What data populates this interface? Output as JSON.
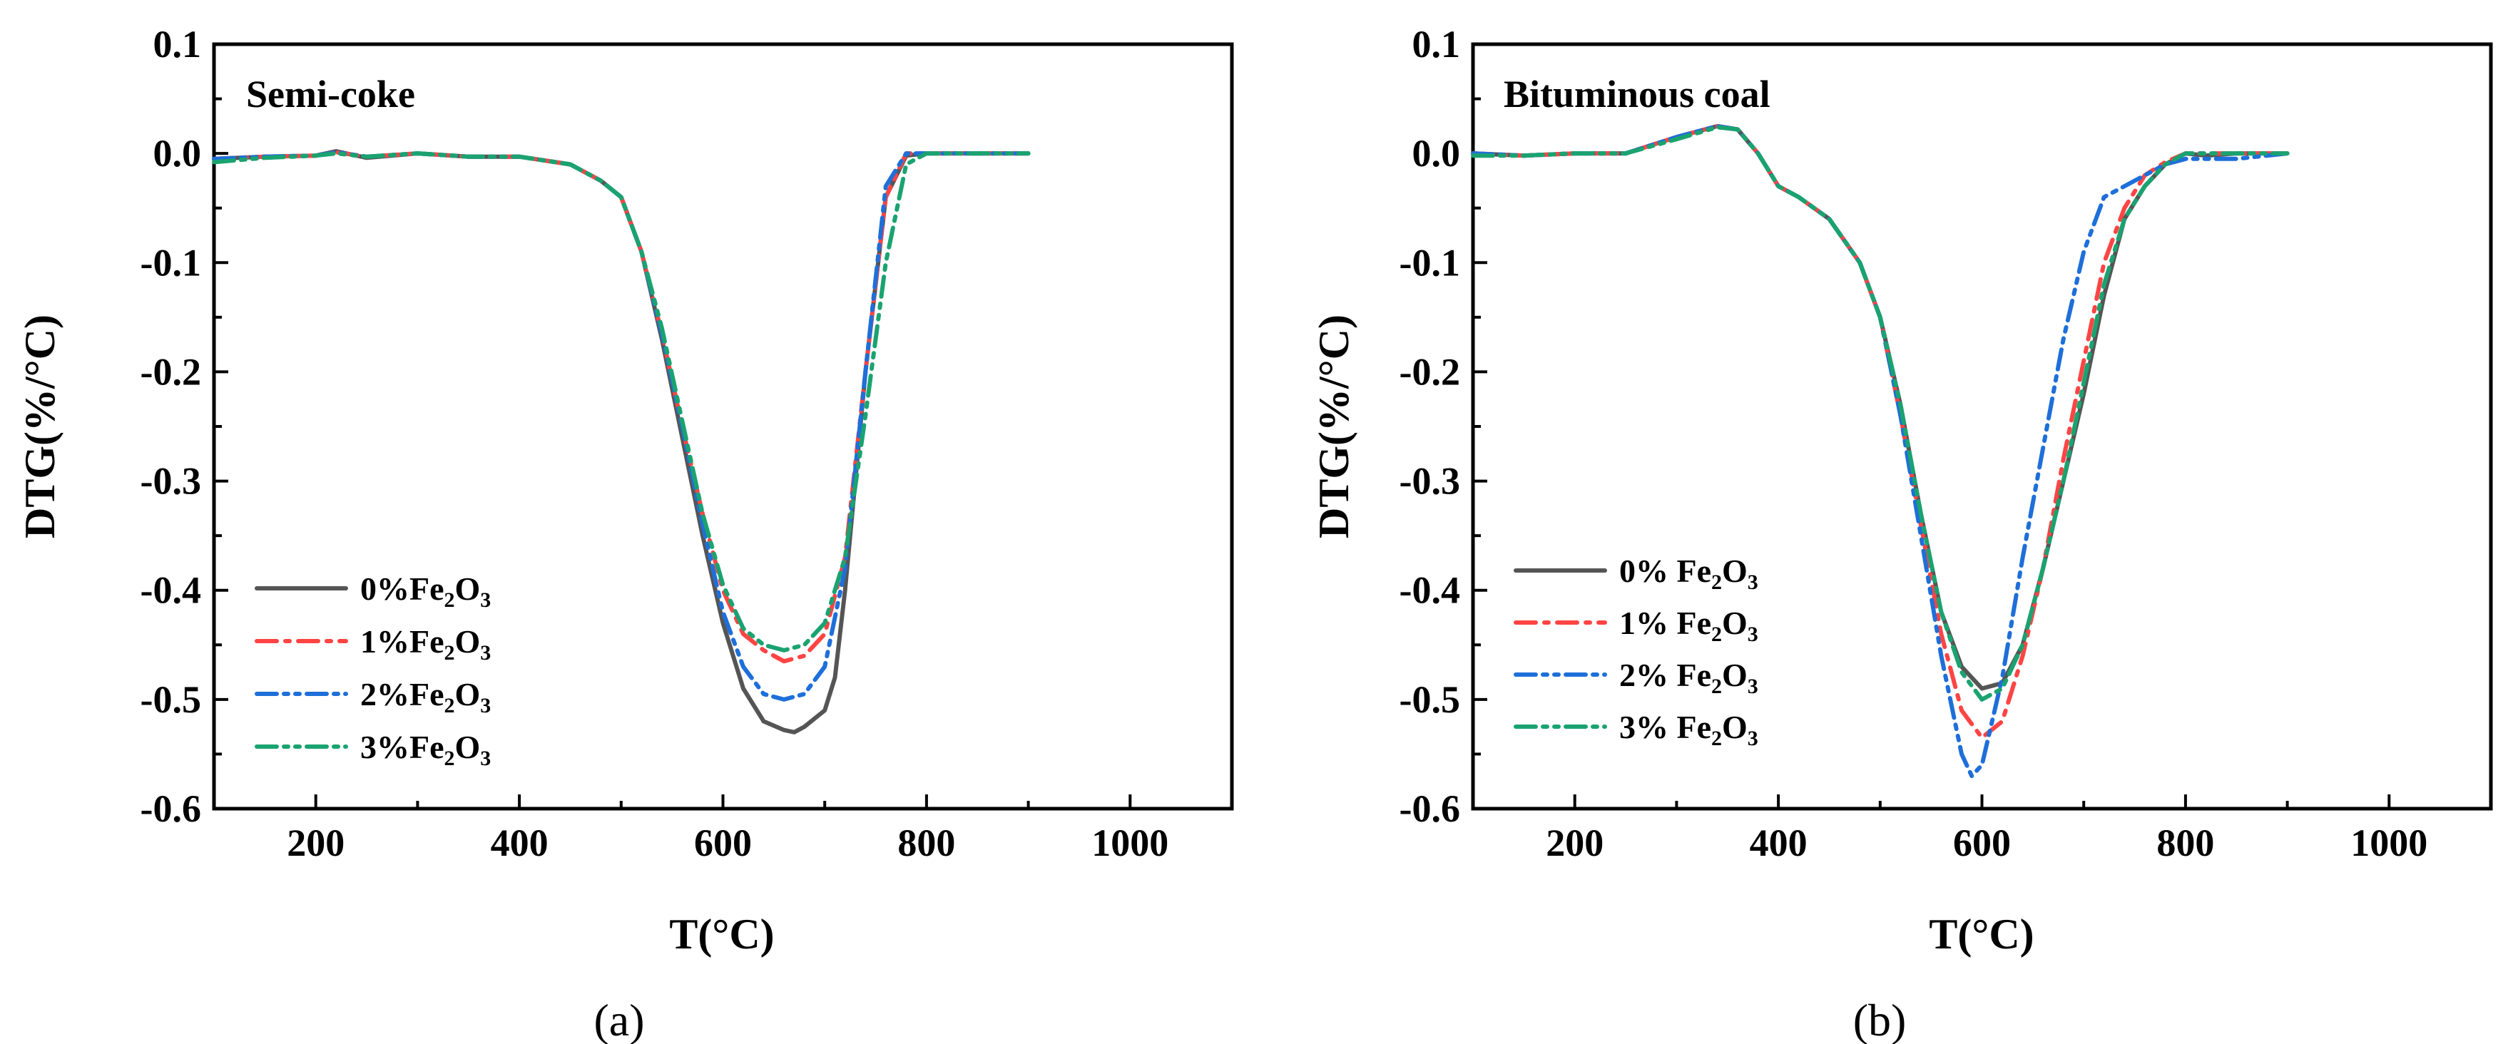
{
  "chart_data": [
    {
      "type": "line",
      "panel_label": "(a)",
      "title": "Semi-coke",
      "xlabel": "T(°C)",
      "ylabel": "DTG(%/°C)",
      "xlim": [
        100,
        1100
      ],
      "ylim": [
        -0.6,
        0.1
      ],
      "xticks": [
        200,
        400,
        600,
        800,
        1000
      ],
      "yticks": [
        0.1,
        0.0,
        -0.1,
        -0.2,
        -0.3,
        -0.4,
        -0.5,
        -0.6
      ],
      "ytick_labels": [
        "0.1",
        "0.0",
        "-0.1",
        "-0.2",
        "-0.3",
        "-0.4",
        "-0.5",
        "-0.6"
      ],
      "legend_position": "bottom-left",
      "series": [
        {
          "name": "0%Fe2O3",
          "label_main": "0%Fe",
          "label_sub1": "2",
          "label_mid": "O",
          "label_sub2": "3",
          "color": "#555555",
          "dash": "solid",
          "x": [
            100,
            150,
            200,
            220,
            250,
            300,
            350,
            400,
            450,
            480,
            500,
            520,
            540,
            560,
            580,
            600,
            620,
            640,
            660,
            670,
            680,
            700,
            710,
            720,
            740,
            760,
            780,
            800,
            850,
            900
          ],
          "y": [
            -0.005,
            -0.003,
            -0.002,
            0.002,
            -0.004,
            0.0,
            -0.003,
            -0.003,
            -0.01,
            -0.025,
            -0.04,
            -0.09,
            -0.17,
            -0.26,
            -0.35,
            -0.43,
            -0.49,
            -0.52,
            -0.528,
            -0.53,
            -0.525,
            -0.51,
            -0.48,
            -0.4,
            -0.2,
            -0.04,
            -0.002,
            0.0,
            0.0,
            0.0
          ]
        },
        {
          "name": "1%Fe2O3",
          "label_main": "1%Fe",
          "label_sub1": "2",
          "label_mid": "O",
          "label_sub2": "3",
          "color": "#ff4444",
          "dash": "dashdot",
          "x": [
            100,
            150,
            200,
            220,
            250,
            300,
            350,
            400,
            450,
            480,
            500,
            520,
            540,
            560,
            580,
            600,
            620,
            640,
            660,
            680,
            700,
            720,
            740,
            760,
            780,
            800,
            850,
            900
          ],
          "y": [
            -0.005,
            -0.003,
            -0.002,
            0.001,
            -0.003,
            0.0,
            -0.003,
            -0.003,
            -0.01,
            -0.025,
            -0.04,
            -0.09,
            -0.165,
            -0.25,
            -0.33,
            -0.4,
            -0.44,
            -0.455,
            -0.465,
            -0.46,
            -0.44,
            -0.37,
            -0.2,
            -0.04,
            0.0,
            0.0,
            0.0,
            0.0
          ]
        },
        {
          "name": "2%Fe2O3",
          "label_main": "2%Fe",
          "label_sub1": "2",
          "label_mid": "O",
          "label_sub2": "3",
          "color": "#1e6fd9",
          "dash": "dashdotdot",
          "x": [
            100,
            150,
            200,
            220,
            250,
            300,
            350,
            400,
            450,
            480,
            500,
            520,
            540,
            560,
            580,
            600,
            620,
            640,
            660,
            680,
            700,
            720,
            740,
            760,
            780,
            800,
            850,
            900
          ],
          "y": [
            -0.005,
            -0.003,
            -0.002,
            0.001,
            -0.003,
            0.0,
            -0.003,
            -0.003,
            -0.01,
            -0.025,
            -0.04,
            -0.09,
            -0.165,
            -0.25,
            -0.34,
            -0.42,
            -0.47,
            -0.495,
            -0.5,
            -0.495,
            -0.47,
            -0.38,
            -0.2,
            -0.03,
            0.0,
            0.0,
            0.0,
            0.0
          ]
        },
        {
          "name": "3%Fe2O3",
          "label_main": "3%Fe",
          "label_sub1": "2",
          "label_mid": "O",
          "label_sub2": "3",
          "color": "#1aa370",
          "dash": "dashdotdot",
          "x": [
            100,
            150,
            200,
            220,
            250,
            300,
            350,
            400,
            450,
            480,
            500,
            520,
            540,
            560,
            580,
            600,
            620,
            640,
            660,
            680,
            700,
            720,
            740,
            760,
            780,
            800,
            850,
            900
          ],
          "y": [
            -0.008,
            -0.004,
            -0.002,
            0.0,
            -0.003,
            0.0,
            -0.003,
            -0.003,
            -0.01,
            -0.025,
            -0.04,
            -0.09,
            -0.16,
            -0.245,
            -0.33,
            -0.395,
            -0.435,
            -0.45,
            -0.455,
            -0.45,
            -0.43,
            -0.37,
            -0.24,
            -0.1,
            -0.01,
            0.0,
            0.0,
            0.0
          ]
        }
      ]
    },
    {
      "type": "line",
      "panel_label": "(b)",
      "title": "Bituminous coal",
      "xlabel": "T(°C)",
      "ylabel": "DTG(%/°C)",
      "xlim": [
        100,
        1100
      ],
      "ylim": [
        -0.6,
        0.1
      ],
      "xticks": [
        200,
        400,
        600,
        800,
        1000
      ],
      "yticks": [
        0.1,
        0.0,
        -0.1,
        -0.2,
        -0.3,
        -0.4,
        -0.5,
        -0.6
      ],
      "ytick_labels": [
        "0.1",
        "0.0",
        "-0.1",
        "-0.2",
        "-0.3",
        "-0.4",
        "-0.5",
        "-0.6"
      ],
      "legend_position": "bottom-left",
      "series": [
        {
          "name": "0% Fe2O3",
          "label_main": "0% Fe",
          "label_sub1": "2",
          "label_mid": "O",
          "label_sub2": "3",
          "color": "#555555",
          "dash": "solid",
          "x": [
            100,
            150,
            200,
            250,
            300,
            340,
            360,
            380,
            400,
            420,
            450,
            480,
            500,
            520,
            540,
            560,
            580,
            600,
            620,
            640,
            660,
            680,
            700,
            720,
            740,
            760,
            780,
            800,
            820,
            850,
            900
          ],
          "y": [
            0.0,
            -0.002,
            0.0,
            0.0,
            0.015,
            0.025,
            0.022,
            0.0,
            -0.03,
            -0.04,
            -0.06,
            -0.1,
            -0.15,
            -0.23,
            -0.33,
            -0.42,
            -0.47,
            -0.49,
            -0.485,
            -0.45,
            -0.38,
            -0.3,
            -0.22,
            -0.13,
            -0.06,
            -0.03,
            -0.01,
            0.0,
            -0.002,
            0.0,
            0.0
          ]
        },
        {
          "name": "1% Fe2O3",
          "label_main": "1% Fe",
          "label_sub1": "2",
          "label_mid": "O",
          "label_sub2": "3",
          "color": "#ff4444",
          "dash": "dashdot",
          "x": [
            100,
            150,
            200,
            250,
            300,
            340,
            360,
            380,
            400,
            420,
            450,
            480,
            500,
            520,
            540,
            560,
            580,
            600,
            620,
            640,
            660,
            680,
            700,
            720,
            740,
            760,
            780,
            800,
            850,
            900
          ],
          "y": [
            0.0,
            -0.002,
            0.0,
            0.0,
            0.015,
            0.025,
            0.022,
            0.0,
            -0.03,
            -0.04,
            -0.06,
            -0.1,
            -0.15,
            -0.24,
            -0.34,
            -0.44,
            -0.51,
            -0.535,
            -0.52,
            -0.46,
            -0.38,
            -0.28,
            -0.19,
            -0.1,
            -0.05,
            -0.02,
            -0.008,
            0.0,
            0.0,
            0.0
          ]
        },
        {
          "name": "2% Fe2O3",
          "label_main": "2% Fe",
          "label_sub1": "2",
          "label_mid": "O",
          "label_sub2": "3",
          "color": "#1e6fd9",
          "dash": "dashdotdot",
          "x": [
            100,
            150,
            200,
            250,
            300,
            340,
            360,
            380,
            400,
            420,
            450,
            480,
            500,
            520,
            540,
            560,
            580,
            590,
            600,
            620,
            640,
            660,
            680,
            700,
            720,
            740,
            760,
            780,
            800,
            850,
            900
          ],
          "y": [
            0.0,
            -0.002,
            0.0,
            0.0,
            0.015,
            0.025,
            0.022,
            0.0,
            -0.03,
            -0.04,
            -0.06,
            -0.1,
            -0.15,
            -0.24,
            -0.35,
            -0.46,
            -0.55,
            -0.57,
            -0.56,
            -0.48,
            -0.37,
            -0.27,
            -0.17,
            -0.09,
            -0.04,
            -0.03,
            -0.02,
            -0.01,
            -0.005,
            -0.005,
            0.0
          ]
        },
        {
          "name": "3% Fe2O3",
          "label_main": "3% Fe",
          "label_sub1": "2",
          "label_mid": "O",
          "label_sub2": "3",
          "color": "#1aa370",
          "dash": "dashdotdot",
          "x": [
            100,
            150,
            200,
            250,
            300,
            340,
            360,
            380,
            400,
            420,
            450,
            480,
            500,
            520,
            540,
            560,
            580,
            600,
            620,
            640,
            660,
            680,
            700,
            720,
            740,
            760,
            780,
            800,
            850,
            900
          ],
          "y": [
            -0.002,
            -0.002,
            0.0,
            0.0,
            0.013,
            0.024,
            0.022,
            0.0,
            -0.03,
            -0.04,
            -0.06,
            -0.1,
            -0.15,
            -0.23,
            -0.33,
            -0.42,
            -0.475,
            -0.5,
            -0.49,
            -0.45,
            -0.38,
            -0.3,
            -0.21,
            -0.12,
            -0.06,
            -0.03,
            -0.01,
            0.0,
            0.0,
            0.0
          ]
        }
      ]
    }
  ]
}
